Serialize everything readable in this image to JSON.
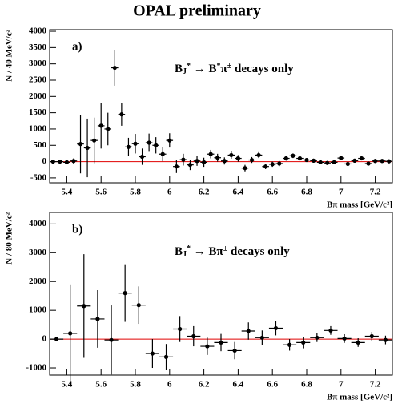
{
  "chart_data": [
    {
      "type": "errorbar",
      "title": "OPAL preliminary",
      "panel_label": "a)",
      "annotation_parts": [
        {
          "text": "B"
        },
        {
          "text": "J",
          "shift": "sub"
        },
        {
          "text": "*",
          "shift": "sup"
        },
        {
          "text": " → B"
        },
        {
          "text": "*",
          "shift": "sup"
        },
        {
          "text": "π"
        },
        {
          "text": "±",
          "shift": "sup"
        },
        {
          "text": "  decays only"
        }
      ],
      "xlabel": "Bπ mass [GeV/c²]",
      "ylabel": "N / 40 MeV/c²",
      "x": [
        5.32,
        5.36,
        5.4,
        5.44,
        5.48,
        5.52,
        5.56,
        5.6,
        5.64,
        5.68,
        5.72,
        5.76,
        5.8,
        5.84,
        5.88,
        5.92,
        5.96,
        6.0,
        6.04,
        6.08,
        6.12,
        6.16,
        6.2,
        6.24,
        6.28,
        6.32,
        6.36,
        6.4,
        6.44,
        6.48,
        6.52,
        6.56,
        6.6,
        6.64,
        6.68,
        6.72,
        6.76,
        6.8,
        6.84,
        6.88,
        6.92,
        6.96,
        7.0,
        7.04,
        7.08,
        7.12,
        7.16,
        7.2,
        7.24,
        7.28
      ],
      "values": [
        0,
        0,
        -20,
        20,
        540,
        420,
        650,
        1100,
        1000,
        2880,
        1450,
        450,
        550,
        150,
        580,
        500,
        230,
        650,
        -150,
        60,
        -100,
        20,
        -20,
        230,
        120,
        20,
        200,
        100,
        -200,
        50,
        200,
        -150,
        -80,
        -60,
        100,
        180,
        100,
        50,
        30,
        -20,
        -40,
        -20,
        110,
        -70,
        30,
        100,
        -60,
        20,
        20,
        10
      ],
      "errors": [
        40,
        40,
        60,
        80,
        900,
        900,
        700,
        700,
        500,
        550,
        350,
        280,
        300,
        250,
        280,
        250,
        220,
        220,
        200,
        180,
        160,
        150,
        140,
        130,
        120,
        110,
        110,
        100,
        100,
        90,
        90,
        80,
        80,
        80,
        70,
        70,
        70,
        60,
        60,
        60,
        60,
        60,
        60,
        60,
        60,
        60,
        60,
        60,
        60,
        60
      ],
      "color": "#000000",
      "hline": 0,
      "hline_color": "#e00000",
      "xlim": [
        5.3,
        7.3
      ],
      "xticks": [
        5.4,
        5.6,
        5.8,
        6,
        6.2,
        6.4,
        6.6,
        6.8,
        7,
        7.2
      ],
      "ylim": [
        -650,
        4050
      ],
      "yticks": [
        -500,
        0,
        500,
        1000,
        1500,
        2000,
        2500,
        3000,
        3500,
        4000
      ]
    },
    {
      "type": "errorbar",
      "panel_label": "b)",
      "annotation_parts": [
        {
          "text": "B"
        },
        {
          "text": "J",
          "shift": "sub"
        },
        {
          "text": "*",
          "shift": "sup"
        },
        {
          "text": " → Bπ"
        },
        {
          "text": "±",
          "shift": "sup"
        },
        {
          "text": "  decays only"
        }
      ],
      "xlabel": "Bπ mass [GeV/c²]",
      "ylabel": "N / 80 MeV/c²",
      "x": [
        5.34,
        5.42,
        5.5,
        5.58,
        5.66,
        5.74,
        5.82,
        5.9,
        5.98,
        6.06,
        6.14,
        6.22,
        6.3,
        6.38,
        6.46,
        6.54,
        6.62,
        6.7,
        6.78,
        6.86,
        6.94,
        7.02,
        7.1,
        7.18,
        7.26
      ],
      "values": [
        0,
        200,
        1150,
        700,
        -30,
        1600,
        1180,
        -500,
        -620,
        350,
        100,
        -250,
        -120,
        -400,
        280,
        50,
        380,
        -200,
        -120,
        50,
        300,
        20,
        -120,
        100,
        -30
      ],
      "errors": [
        50,
        1700,
        1800,
        1000,
        1200,
        1000,
        650,
        500,
        450,
        450,
        350,
        300,
        300,
        300,
        300,
        250,
        250,
        200,
        200,
        150,
        150,
        150,
        150,
        150,
        150
      ],
      "color": "#000000",
      "hline": 0,
      "hline_color": "#e00000",
      "xlim": [
        5.3,
        7.3
      ],
      "xticks": [
        5.4,
        5.6,
        5.8,
        6,
        6.2,
        6.4,
        6.6,
        6.8,
        7,
        7.2
      ],
      "ylim": [
        -1250,
        4400
      ],
      "yticks": [
        -1000,
        0,
        1000,
        2000,
        3000,
        4000
      ]
    }
  ]
}
